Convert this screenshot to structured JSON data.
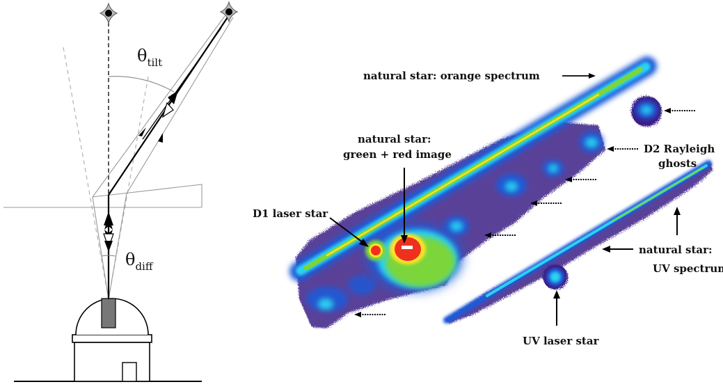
{
  "left_diagram": {
    "theta_tilt": {
      "symbol": "θ",
      "subscript": "tilt"
    },
    "theta_diff": {
      "symbol": "θ",
      "subscript": "diff"
    }
  },
  "right_image": {
    "labels": {
      "orange_spectrum": "natural star: orange spectrum",
      "green_red_line1": "natural star:",
      "green_red_line2": "green + red image",
      "d2_line1": "D2 Rayleigh",
      "d2_line2": "ghosts",
      "d1_laser": "D1 laser star",
      "uv_spectrum_line1": "natural star:",
      "uv_spectrum_line2": "UV spectrum",
      "uv_laser": "UV laser star"
    }
  },
  "colors": {
    "background_glow": "#3c1f86",
    "core_blue": "#1c5ad8",
    "cyan": "#2ad2f0",
    "green": "#7bd63a",
    "yellow": "#ffe12a",
    "red": "#f0301e"
  }
}
